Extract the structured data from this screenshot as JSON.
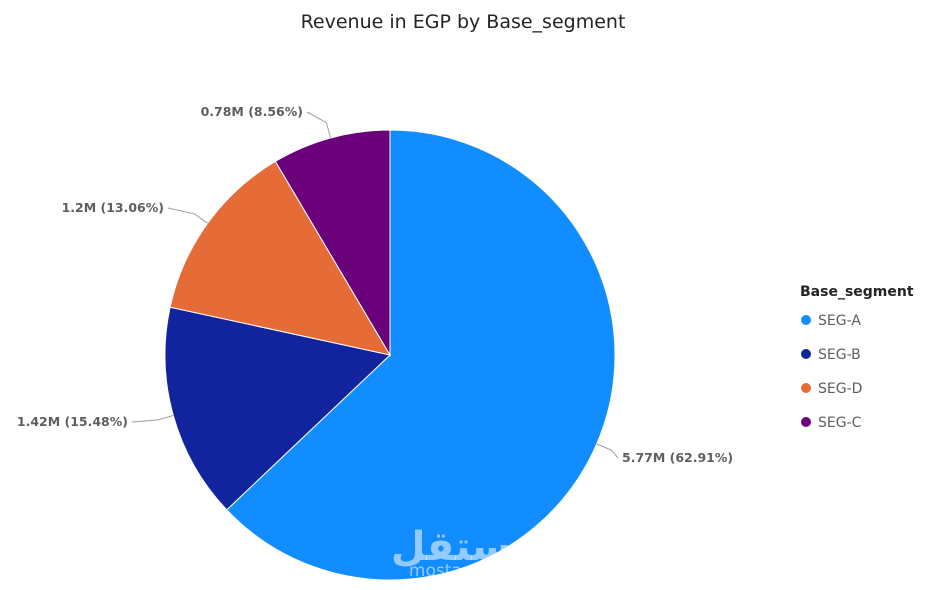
{
  "chart_data": {
    "type": "pie",
    "title": "Revenue in EGP by Base_segment",
    "legend_title": "Base_segment",
    "legend_placement": "right",
    "slices": [
      {
        "label": "SEG-A",
        "value": 5.77,
        "percent": 62.91,
        "data_label": "5.77M (62.91%)",
        "color": "#118DFF"
      },
      {
        "label": "SEG-B",
        "value": 1.42,
        "percent": 15.48,
        "data_label": "1.42M (15.48%)",
        "color": "#12239E"
      },
      {
        "label": "SEG-D",
        "value": 1.2,
        "percent": 13.06,
        "data_label": "1.2M (13.06%)",
        "color": "#E66C37"
      },
      {
        "label": "SEG-C",
        "value": 0.78,
        "percent": 8.56,
        "data_label": "0.78M (8.56%)",
        "color": "#6B007B"
      }
    ]
  },
  "watermark": {
    "arabic_text": "مستقل",
    "latin_text": "mostaql.com"
  }
}
